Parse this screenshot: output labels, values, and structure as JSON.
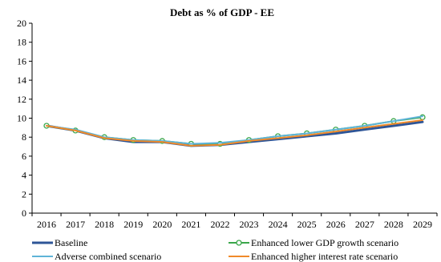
{
  "chart_data": {
    "type": "line",
    "title": "Debt as % of GDP - EE",
    "xlabel": "",
    "ylabel": "",
    "categories": [
      "2016",
      "2017",
      "2018",
      "2019",
      "2020",
      "2021",
      "2022",
      "2023",
      "2024",
      "2025",
      "2026",
      "2027",
      "2028",
      "2029"
    ],
    "ylim": [
      0,
      20
    ],
    "yticks": [
      "0",
      "2",
      "4",
      "6",
      "8",
      "10",
      "12",
      "14",
      "16",
      "18",
      "20"
    ],
    "grid": false,
    "legend_position": "bottom",
    "series": [
      {
        "name": "Baseline",
        "color": "#2e5597",
        "marker": "none",
        "values": [
          9.2,
          8.7,
          7.9,
          7.5,
          7.5,
          7.1,
          7.2,
          7.5,
          7.8,
          8.1,
          8.4,
          8.8,
          9.2,
          9.6
        ]
      },
      {
        "name": "Enhanced lower GDP growth scenario",
        "color": "#3aa64a",
        "marker": "circle",
        "values": [
          9.2,
          8.7,
          8.0,
          7.7,
          7.6,
          7.3,
          7.3,
          7.7,
          8.1,
          8.4,
          8.8,
          9.2,
          9.7,
          10.1
        ]
      },
      {
        "name": "Adverse combined scenario",
        "color": "#5fb4d8",
        "marker": "none",
        "values": [
          9.2,
          8.8,
          8.0,
          7.7,
          7.6,
          7.3,
          7.4,
          7.7,
          8.1,
          8.4,
          8.8,
          9.2,
          9.7,
          10.2
        ]
      },
      {
        "name": "Enhanced higher interest rate scenario",
        "color": "#f08a2a",
        "marker": "none",
        "values": [
          9.2,
          8.7,
          7.9,
          7.6,
          7.5,
          7.1,
          7.2,
          7.6,
          7.9,
          8.2,
          8.6,
          9.0,
          9.4,
          9.8
        ]
      }
    ]
  }
}
